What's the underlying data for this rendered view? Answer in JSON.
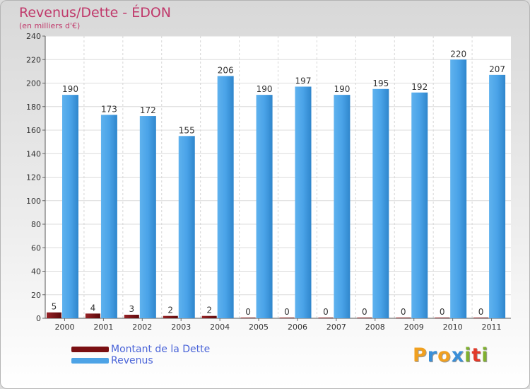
{
  "chart_data": {
    "type": "bar",
    "title": "Revenus/Dette - ÉDON",
    "subtitle": "(en milliers d'€)",
    "categories": [
      "2000",
      "2001",
      "2002",
      "2003",
      "2004",
      "2005",
      "2006",
      "2007",
      "2008",
      "2009",
      "2010",
      "2011"
    ],
    "series": [
      {
        "name": "Montant de la Dette",
        "color": "#7a0f12",
        "values": [
          5,
          4,
          3,
          2,
          2,
          0,
          0,
          0,
          0,
          0,
          0,
          0
        ]
      },
      {
        "name": "Revenus",
        "color": "#4da3e6",
        "values": [
          190,
          173,
          172,
          155,
          206,
          190,
          197,
          190,
          195,
          192,
          220,
          207
        ]
      }
    ],
    "ylim": [
      0,
      240
    ],
    "yticks": [
      0,
      20,
      40,
      60,
      80,
      100,
      120,
      140,
      160,
      180,
      200,
      220,
      240
    ],
    "grid": true,
    "legend_position": "bottom-left"
  },
  "logo": {
    "letters": [
      "P",
      "r",
      "o",
      "x",
      "i",
      "t",
      "i"
    ],
    "colors": [
      "#f0a020",
      "#3a8fd8",
      "#f0a020",
      "#3a8fd8",
      "#80b030",
      "#e23a2a",
      "#80b030"
    ]
  }
}
